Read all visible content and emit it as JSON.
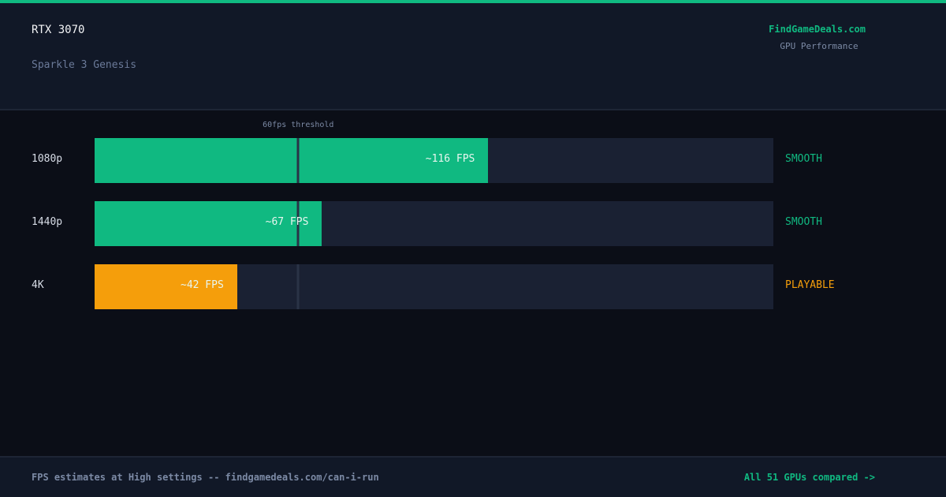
{
  "header": {
    "title": "RTX 3070",
    "subtitle": "Sparkle 3 Genesis",
    "brand": "FindGameDeals.com",
    "brand_sub": "GPU Performance"
  },
  "colors": {
    "accent": "#10b981",
    "smooth": "#10b981",
    "playable": "#f59e0b"
  },
  "chart_data": {
    "type": "bar",
    "orientation": "horizontal",
    "categories": [
      "1080p",
      "1440p",
      "4K"
    ],
    "values": [
      116,
      67,
      42
    ],
    "value_labels": [
      "~116 FPS",
      "~67 FPS",
      "~42 FPS"
    ],
    "ratings": [
      "SMOOTH",
      "SMOOTH",
      "PLAYABLE"
    ],
    "xlim": [
      0,
      200
    ],
    "threshold": {
      "value": 60,
      "label": "60fps threshold"
    },
    "grid": false
  },
  "footer": {
    "note": "FPS estimates at High settings -- findgamedeals.com/can-i-run",
    "link": "All 51 GPUs compared ->"
  }
}
